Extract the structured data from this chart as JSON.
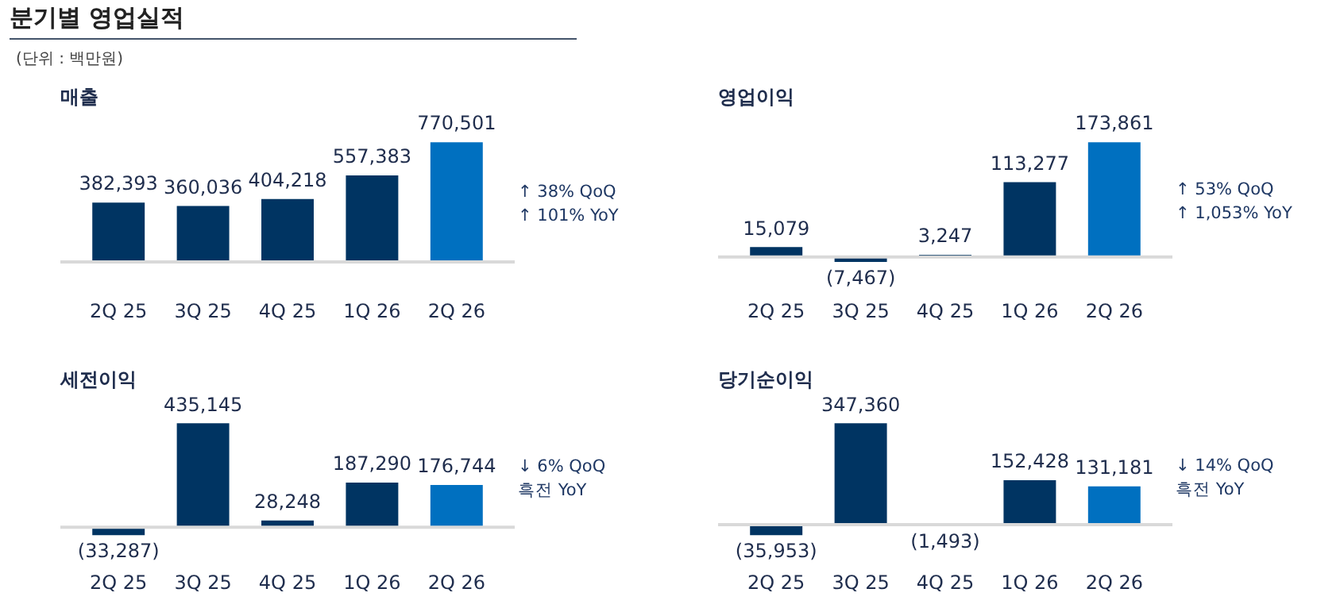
{
  "chart_data": [
    {
      "type": "bar",
      "title": "매출",
      "annotations": [
        "분기별 영업실적",
        "(단위 : 백만원)",
        "↑ 38% QoQ",
        "↑ 101% YoY"
      ],
      "categories": [
        "2Q 25",
        "3Q 25",
        "4Q 25",
        "1Q 26",
        "2Q 26"
      ],
      "values": [
        382393,
        360036,
        404218,
        557383,
        770501
      ],
      "value_labels": [
        "382,393",
        "360,036",
        "404,218",
        "557,383",
        "770,501"
      ],
      "colors": [
        "#003462",
        "#003462",
        "#003462",
        "#003462",
        "#0070c0"
      ],
      "tick_labels": "x",
      "grid": false,
      "legend": false
    },
    {
      "type": "bar",
      "title": "영업이익",
      "annotations": [
        "↑ 53% QoQ",
        "↑ 1,053% YoY"
      ],
      "categories": [
        "2Q 25",
        "3Q 25",
        "4Q 25",
        "1Q 26",
        "2Q 26"
      ],
      "values": [
        15079,
        -7467,
        3247,
        113277,
        173861
      ],
      "value_labels": [
        "15,079",
        "(7,467)",
        "3,247",
        "113,277",
        "173,861"
      ],
      "colors": [
        "#003462",
        "#003462",
        "#003462",
        "#003462",
        "#0070c0"
      ],
      "tick_labels": "x",
      "grid": false,
      "legend": false
    },
    {
      "type": "bar",
      "title": "세전이익",
      "annotations": [
        "↓ 6% QoQ",
        "흑전 YoY"
      ],
      "categories": [
        "2Q 25",
        "3Q 25",
        "4Q 25",
        "1Q 26",
        "2Q 26"
      ],
      "values": [
        -33287,
        435145,
        28248,
        187290,
        176744
      ],
      "value_labels": [
        "(33,287)",
        "435,145",
        "28,248",
        "187,290",
        "176,744"
      ],
      "colors": [
        "#003462",
        "#003462",
        "#003462",
        "#003462",
        "#0070c0"
      ],
      "tick_labels": "x",
      "grid": false,
      "legend": false
    },
    {
      "type": "bar",
      "title": "당기순이익",
      "annotations": [
        "↓ 14% QoQ",
        "흑전 YoY"
      ],
      "categories": [
        "2Q 25",
        "3Q 25",
        "4Q 25",
        "1Q 26",
        "2Q 26"
      ],
      "values": [
        -35953,
        347360,
        -1493,
        152428,
        131181
      ],
      "value_labels": [
        "(35,953)",
        "347,360",
        "(1,493)",
        "152,428",
        "131,181"
      ],
      "colors": [
        "#003462",
        "#003462",
        "#003462",
        "#003462",
        "#0070c0"
      ],
      "tick_labels": "x",
      "grid": false,
      "legend": false
    }
  ]
}
